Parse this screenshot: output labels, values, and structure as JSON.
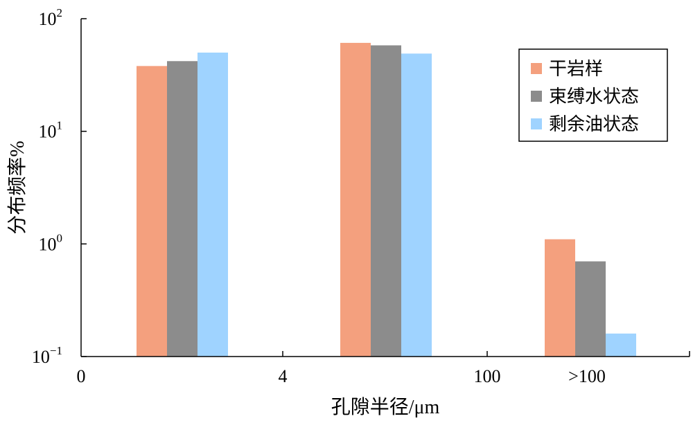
{
  "chart_data": {
    "type": "bar",
    "title": "",
    "xlabel": "孔隙半径/μm",
    "ylabel": "分布频率%",
    "y_scale": "log",
    "ylim": [
      0.1,
      100
    ],
    "grid": false,
    "legend_position": "top-right",
    "x_tick_labels": [
      "0",
      "4",
      "100",
      ">100"
    ],
    "y_ticks": [
      {
        "value": 0.1,
        "base": "10",
        "exp": "−1"
      },
      {
        "value": 1,
        "base": "10",
        "exp": "0"
      },
      {
        "value": 10,
        "base": "10",
        "exp": "1"
      },
      {
        "value": 100,
        "base": "10",
        "exp": "2"
      }
    ],
    "groups": [
      "0~4",
      "4~100",
      ">100"
    ],
    "series": [
      {
        "name": "干岩样",
        "color": "#F4A07E",
        "values": [
          38,
          61,
          1.1
        ]
      },
      {
        "name": "束缚水状态",
        "color": "#8C8C8C",
        "values": [
          42,
          58,
          0.7
        ]
      },
      {
        "name": "剩余油状态",
        "color": "#9FD3FF",
        "values": [
          50,
          49,
          0.16
        ]
      }
    ]
  }
}
